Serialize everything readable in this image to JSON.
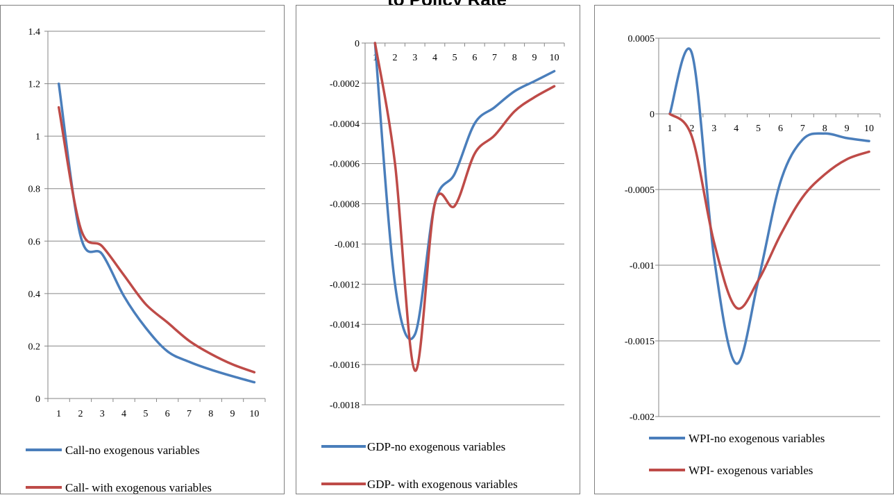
{
  "figure": {
    "title": "to Policy Rate"
  },
  "colors": {
    "series1": "#4a7ebb",
    "series2": "#be4b48",
    "grid": "#868686",
    "axis": "#868686"
  },
  "chart_data": [
    {
      "type": "line",
      "x": [
        1,
        2,
        3,
        4,
        5,
        6,
        7,
        8,
        9,
        10
      ],
      "ylim": [
        0,
        1.4
      ],
      "yticks": [
        0,
        0.2,
        0.4,
        0.6,
        0.8,
        1,
        1.2,
        1.4
      ],
      "yticklabels": [
        "0",
        "0.2",
        "0.4",
        "0.6",
        "0.8",
        "1",
        "1.2",
        "1.4"
      ],
      "xticklabels": [
        "1",
        "2",
        "3",
        "4",
        "5",
        "6",
        "7",
        "8",
        "9",
        "10"
      ],
      "grid": true,
      "legend_position": "bottom",
      "series": [
        {
          "name": "Call-no exogenous variables",
          "color": "#4a7ebb",
          "values": [
            1.2,
            0.62,
            0.55,
            0.39,
            0.27,
            0.18,
            0.14,
            0.11,
            0.085,
            0.062
          ]
        },
        {
          "name": "Call- with exogenous variables",
          "color": "#be4b48",
          "values": [
            1.11,
            0.65,
            0.58,
            0.47,
            0.36,
            0.29,
            0.22,
            0.17,
            0.13,
            0.1
          ]
        }
      ]
    },
    {
      "type": "line",
      "x": [
        1,
        2,
        3,
        4,
        5,
        6,
        7,
        8,
        9,
        10
      ],
      "ylim": [
        -0.0018,
        0
      ],
      "yticks": [
        0,
        -0.0002,
        -0.0004,
        -0.0006,
        -0.0008,
        -0.001,
        -0.0012,
        -0.0014,
        -0.0016,
        -0.0018
      ],
      "yticklabels": [
        "0",
        "-0.0002",
        "-0.0004",
        "-0.0006",
        "-0.0008",
        "-0.001",
        "-0.0012",
        "-0.0014",
        "-0.0016",
        "-0.0018"
      ],
      "xticklabels": [
        "1",
        "2",
        "3",
        "4",
        "5",
        "6",
        "7",
        "8",
        "9",
        "10"
      ],
      "grid": true,
      "legend_position": "bottom",
      "series": [
        {
          "name": "GDP-no exogenous variables",
          "color": "#4a7ebb",
          "values": [
            0,
            -0.0012,
            -0.00145,
            -0.0008,
            -0.00065,
            -0.0004,
            -0.00032,
            -0.00024,
            -0.00019,
            -0.00014
          ]
        },
        {
          "name": "GDP- with exogenous variables",
          "color": "#be4b48",
          "values": [
            0,
            -0.0006,
            -0.00163,
            -0.0008,
            -0.00081,
            -0.00055,
            -0.00046,
            -0.00034,
            -0.00027,
            -0.000215
          ]
        }
      ]
    },
    {
      "type": "line",
      "x": [
        1,
        2,
        3,
        4,
        5,
        6,
        7,
        8,
        9,
        10
      ],
      "ylim": [
        -0.002,
        0.0005
      ],
      "yticks": [
        0.0005,
        0,
        -0.0005,
        -0.001,
        -0.0015,
        -0.002
      ],
      "yticklabels": [
        "0.0005",
        "0",
        "-0.0005",
        "-0.001",
        "-0.0015",
        "-0.002"
      ],
      "xticklabels": [
        "1",
        "2",
        "3",
        "4",
        "5",
        "6",
        "7",
        "8",
        "9",
        "10"
      ],
      "grid": true,
      "legend_position": "bottom",
      "series": [
        {
          "name": "WPI-no exogenous variables",
          "color": "#4a7ebb",
          "values": [
            0,
            0.0004,
            -0.00095,
            -0.00165,
            -0.0011,
            -0.00045,
            -0.00017,
            -0.00013,
            -0.00016,
            -0.00018
          ]
        },
        {
          "name": "WPI- exogenous variables",
          "color": "#be4b48",
          "values": [
            0,
            -0.00015,
            -0.00085,
            -0.00128,
            -0.0011,
            -0.0008,
            -0.00055,
            -0.0004,
            -0.0003,
            -0.00025
          ]
        }
      ]
    }
  ]
}
